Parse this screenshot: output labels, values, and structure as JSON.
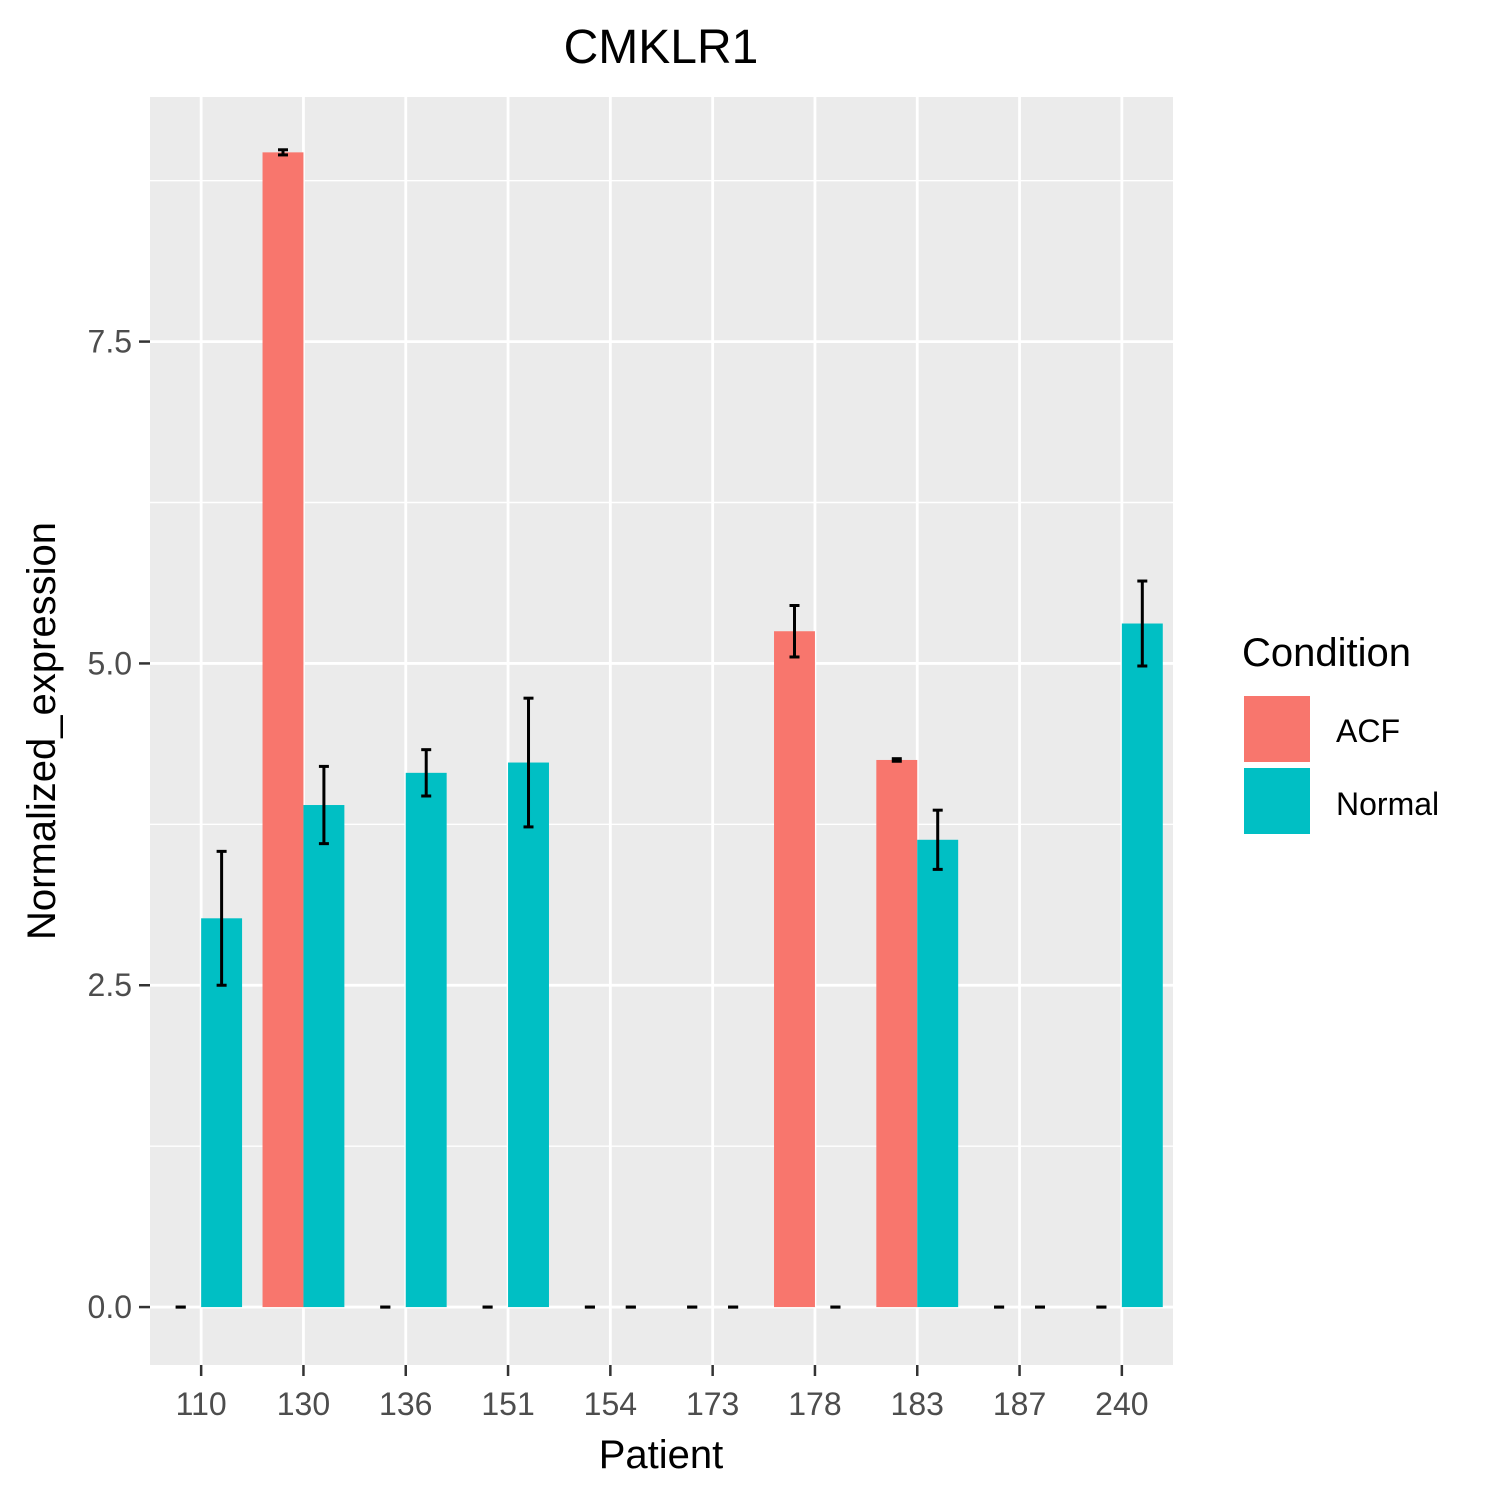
{
  "chart_data": {
    "type": "bar",
    "title": "CMKLR1",
    "xlabel": "Patient",
    "ylabel": "Normalized_expression",
    "categories": [
      "110",
      "130",
      "136",
      "151",
      "154",
      "173",
      "178",
      "183",
      "187",
      "240"
    ],
    "ylim": [
      -0.45,
      9.4
    ],
    "yticks": [
      "0.0",
      "2.5",
      "5.0",
      "7.5"
    ],
    "grid": true,
    "legend_title": "Condition",
    "legend_position": "right",
    "series": [
      {
        "name": "ACF",
        "color": "#F8766D",
        "values": [
          0,
          8.97,
          0,
          0,
          0,
          0,
          5.25,
          4.25,
          0,
          0
        ],
        "error": [
          0,
          0.02,
          0,
          0,
          0,
          0,
          0.2,
          0.01,
          0,
          0
        ]
      },
      {
        "name": "Normal",
        "color": "#00BFC4",
        "values": [
          3.02,
          3.9,
          4.15,
          4.23,
          0,
          0,
          0,
          3.63,
          0,
          5.31
        ],
        "error": [
          0.52,
          0.3,
          0.18,
          0.5,
          0,
          0,
          0,
          0.23,
          0,
          0.33
        ]
      }
    ]
  }
}
